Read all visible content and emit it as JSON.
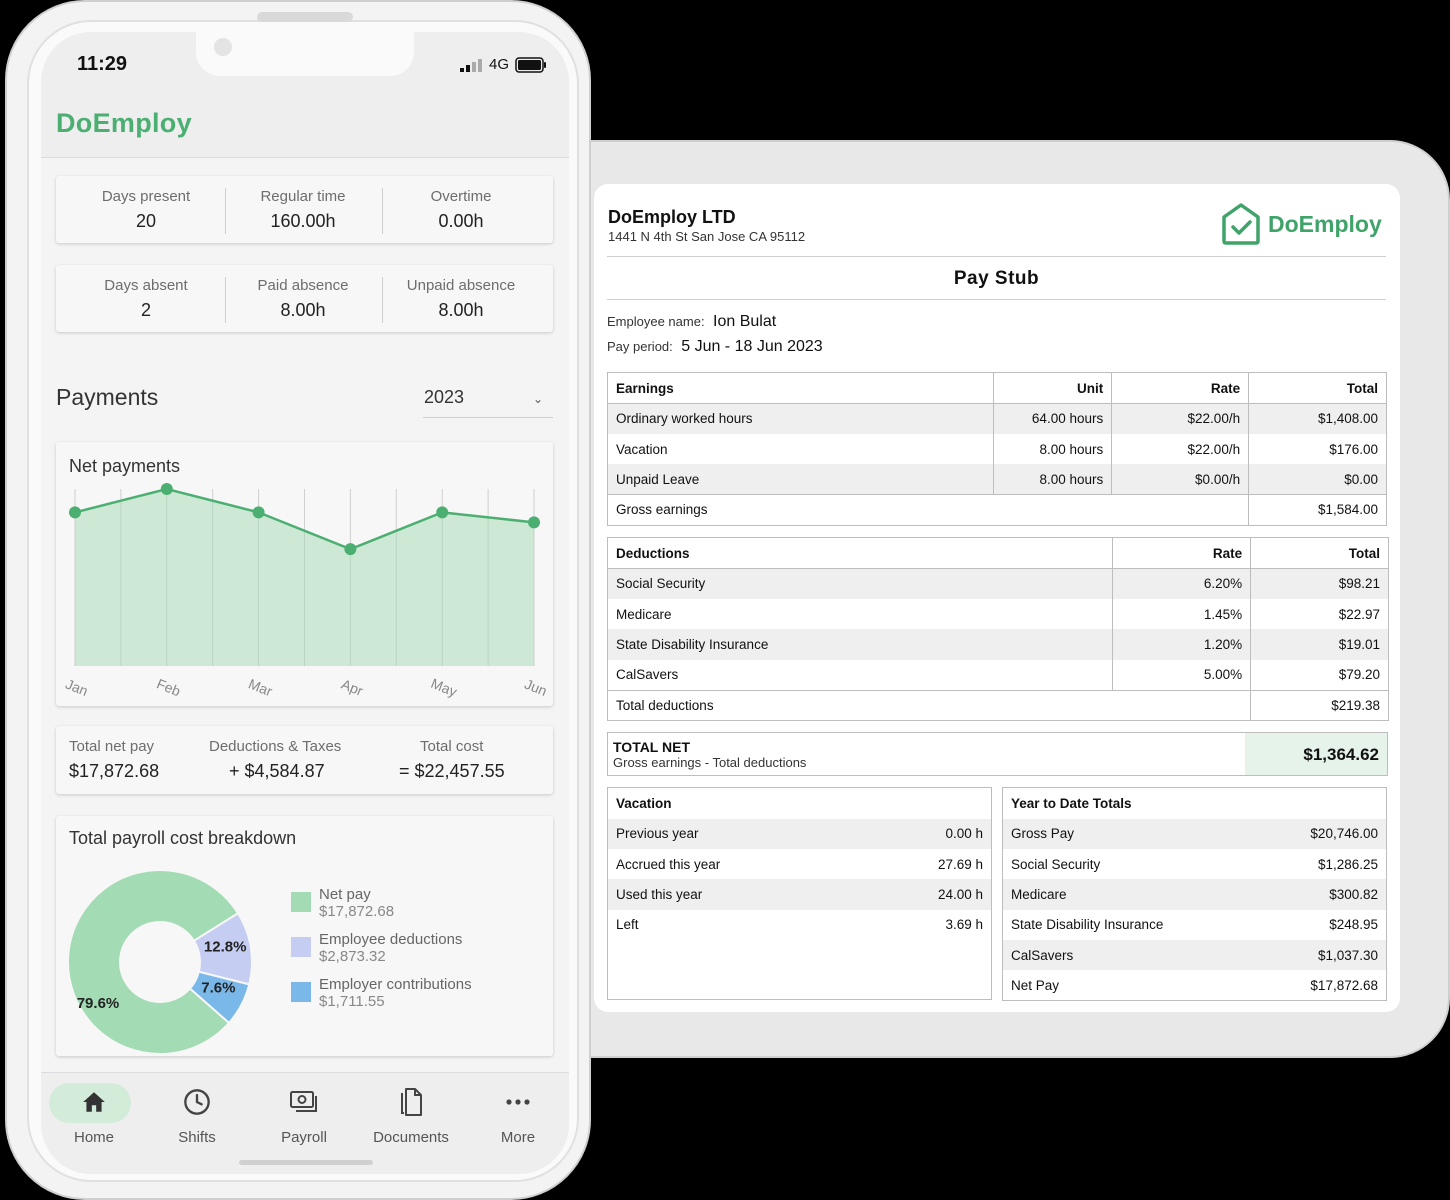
{
  "paystub": {
    "company_name": "DoEmploy LTD",
    "company_address": "1441 N 4th St San Jose CA 95112",
    "logo_text": "DoEmploy",
    "title": "Pay Stub",
    "employee_label": "Employee name:",
    "employee_name": "Ion Bulat",
    "period_label": "Pay period:",
    "period_value": "5 Jun - 18 Jun 2023",
    "earnings": {
      "headers": [
        "Earnings",
        "Unit",
        "Rate",
        "Total"
      ],
      "rows": [
        [
          "Ordinary worked hours",
          "64.00 hours",
          "$22.00/h",
          "$1,408.00"
        ],
        [
          "Vacation",
          "8.00 hours",
          "$22.00/h",
          "$176.00"
        ],
        [
          "Unpaid Leave",
          "8.00 hours",
          "$0.00/h",
          "$0.00"
        ]
      ],
      "total_label": "Gross earnings",
      "total_value": "$1,584.00"
    },
    "deductions": {
      "headers": [
        "Deductions",
        "Rate",
        "Total"
      ],
      "rows": [
        [
          "Social Security",
          "6.20%",
          "$98.21"
        ],
        [
          "Medicare",
          "1.45%",
          "$22.97"
        ],
        [
          "State Disability Insurance",
          "1.20%",
          "$19.01"
        ],
        [
          "CalSavers",
          "5.00%",
          "$79.20"
        ]
      ],
      "total_label": "Total deductions",
      "total_value": "$219.38"
    },
    "net": {
      "label": "TOTAL NET",
      "sub": "Gross earnings - Total deductions",
      "value": "$1,364.62"
    },
    "vacation": {
      "header": "Vacation",
      "rows": [
        [
          "Previous year",
          "0.00 h"
        ],
        [
          "Accrued this year",
          "27.69 h"
        ],
        [
          "Used this year",
          "24.00 h"
        ],
        [
          "Left",
          "3.69 h"
        ]
      ]
    },
    "ytd": {
      "header": "Year to Date Totals",
      "rows": [
        [
          "Gross Pay",
          "$20,746.00"
        ],
        [
          "Social Security",
          "$1,286.25"
        ],
        [
          "Medicare",
          "$300.82"
        ],
        [
          "State Disability Insurance",
          "$248.95"
        ],
        [
          "CalSavers",
          "$1,037.30"
        ],
        [
          "Net Pay",
          "$17,872.68"
        ]
      ]
    }
  },
  "phone": {
    "time": "11:29",
    "network": "4G",
    "brand": "DoEmploy",
    "stats_row1": [
      {
        "label": "Days present",
        "value": "20"
      },
      {
        "label": "Regular time",
        "value": "160.00h"
      },
      {
        "label": "Overtime",
        "value": "0.00h"
      }
    ],
    "stats_row2": [
      {
        "label": "Days absent",
        "value": "2"
      },
      {
        "label": "Paid absence",
        "value": "8.00h"
      },
      {
        "label": "Unpaid absence",
        "value": "8.00h"
      }
    ],
    "payments_title": "Payments",
    "year": "2023",
    "net_payments_title": "Net payments",
    "totals": [
      {
        "label": "Total net pay",
        "value": "$17,872.68"
      },
      {
        "label": "Deductions & Taxes",
        "value": "+ $4,584.87"
      },
      {
        "label": "Total cost",
        "value": "= $22,457.55"
      }
    ],
    "breakdown_title": "Total payroll cost breakdown",
    "legend": [
      {
        "name": "Net pay",
        "amount": "$17,872.68",
        "color": "#a3dbb4"
      },
      {
        "name": "Employee deductions",
        "amount": "$2,873.32",
        "color": "#c5cdf2"
      },
      {
        "name": "Employer contributions",
        "amount": "$1,711.55",
        "color": "#7bb8ea"
      }
    ],
    "tabs": [
      {
        "label": "Home",
        "icon": "home-icon"
      },
      {
        "label": "Shifts",
        "icon": "clock-icon"
      },
      {
        "label": "Payroll",
        "icon": "payroll-icon"
      },
      {
        "label": "Documents",
        "icon": "documents-icon"
      },
      {
        "label": "More",
        "icon": "more-icon"
      }
    ],
    "accent_color": "#4caf72"
  },
  "chart_data": [
    {
      "type": "area",
      "title": "Net payments",
      "categories": [
        "Jan",
        "Feb",
        "Mar",
        "Apr",
        "May",
        "Jun"
      ],
      "series": [
        {
          "values": [
            100,
            107,
            100,
            89,
            100,
            97
          ]
        }
      ],
      "grid": true
    },
    {
      "type": "pie",
      "title": "Total payroll cost breakdown",
      "categories": [
        "Net pay",
        "Employee deductions",
        "Employer contributions"
      ],
      "values": [
        79.6,
        12.8,
        7.6
      ],
      "labels": [
        "79.6%",
        "12.8%",
        "7.6%"
      ],
      "colors": [
        "#a3dbb4",
        "#c5cdf2",
        "#7bb8ea"
      ]
    }
  ]
}
